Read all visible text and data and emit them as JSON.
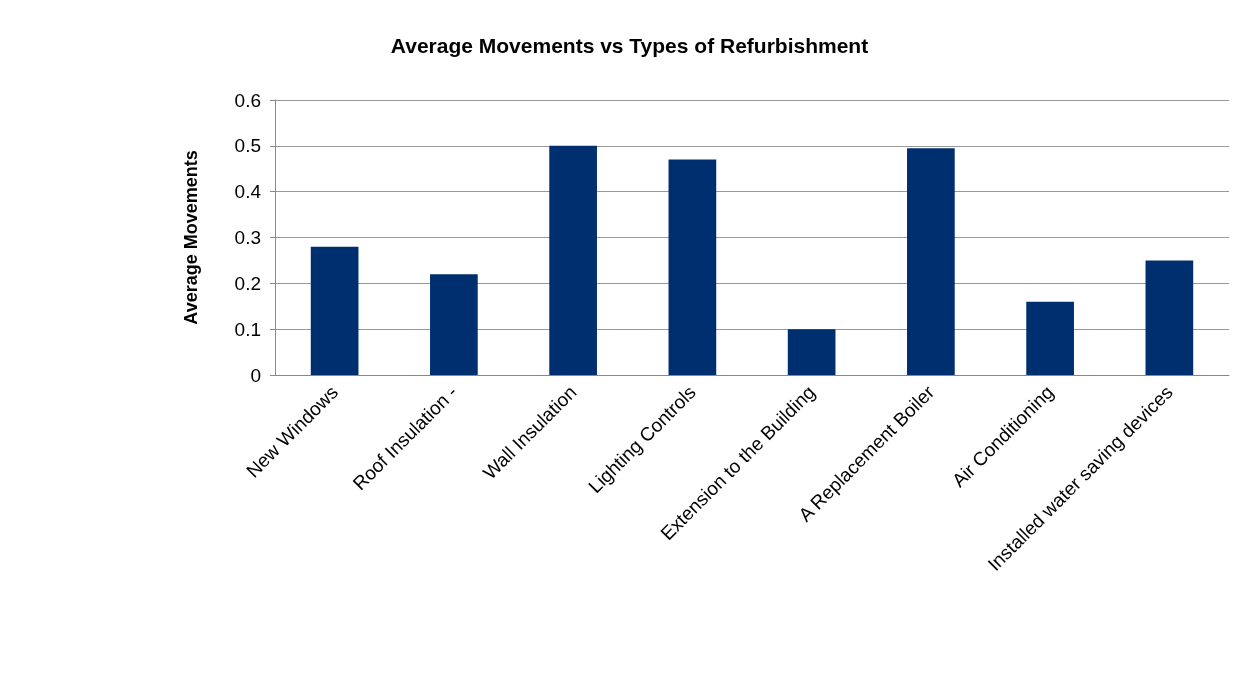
{
  "chart_data": {
    "type": "bar",
    "title": "Average Movements vs Types of Refurbishment",
    "ylabel": "Average Movements",
    "categories": [
      "New Windows",
      "Roof Insulation -",
      "Wall Insulation",
      "Lighting Controls",
      "Extension to the Building",
      "A Replacement Boiler",
      "Air Conditioning",
      "Installed water saving devices"
    ],
    "values": [
      0.28,
      0.22,
      0.5,
      0.47,
      0.1,
      0.495,
      0.16,
      0.25
    ],
    "color": "#002f6f",
    "ylim": [
      0,
      0.6
    ],
    "yticks": [
      0,
      0.1,
      0.2,
      0.3,
      0.4,
      0.5,
      0.6
    ],
    "grid": "y"
  }
}
